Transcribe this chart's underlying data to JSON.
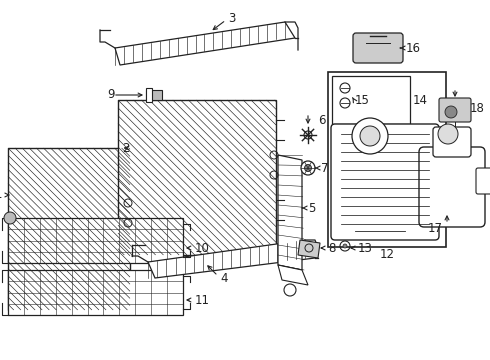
{
  "bg_color": "#ffffff",
  "lc": "#222222",
  "figsize": [
    4.9,
    3.6
  ],
  "dpi": 100
}
